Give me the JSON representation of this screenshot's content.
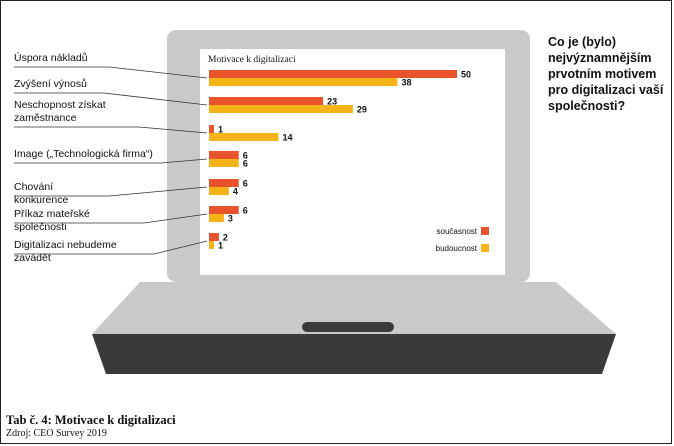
{
  "question": "Co je (bylo) nejvýznamnějším prvotním motivem pro digitalizaci vaší společnosti?",
  "caption": {
    "title": "Tab č. 4: Motivace k digitalizaci",
    "source": "Zdroj: CEO Survey 2019"
  },
  "colors": {
    "current": "#e8532b",
    "future": "#f6b318",
    "laptop_body": "#c9c9c9",
    "laptop_dark": "#3a3a3a",
    "screen": "#ffffff"
  },
  "chart_data": {
    "type": "bar",
    "orientation": "horizontal",
    "title": "Motivace k digitalizaci",
    "categories": [
      "Úspora nákladů",
      "Zvýšení výnosů",
      "Neschopnost získat zaměstnance",
      "Image („Technologická firma“)",
      "Chování konkurence",
      "Příkaz mateřské společnosti",
      "Digitalizaci nebudeme zavádět"
    ],
    "series": [
      {
        "name": "současnost",
        "color": "#e8532b",
        "values": [
          50,
          23,
          1,
          6,
          6,
          6,
          2
        ]
      },
      {
        "name": "budoucnost",
        "color": "#f6b318",
        "values": [
          38,
          29,
          14,
          6,
          4,
          3,
          1
        ]
      }
    ],
    "data_labels": true,
    "legend_position": "bottom-right",
    "grid": false
  }
}
